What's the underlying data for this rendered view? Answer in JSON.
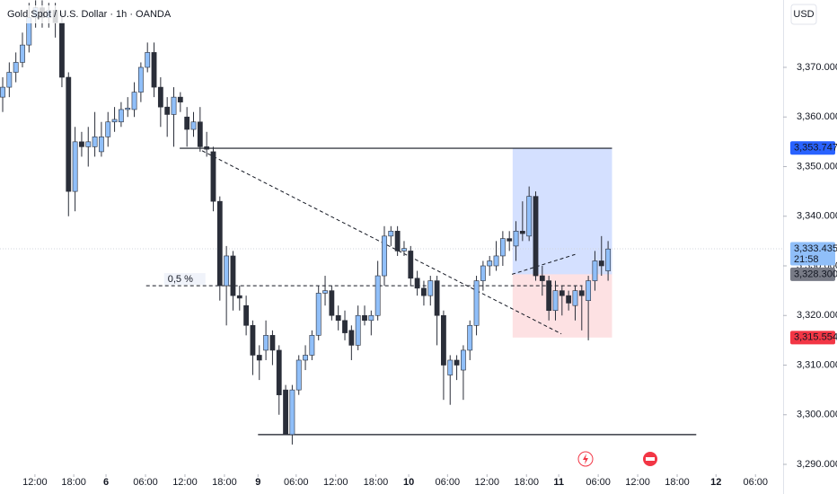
{
  "chart_data": {
    "type": "candlestick",
    "title": "Gold Spot / U.S. Dollar · 1h · OANDA",
    "currency": "USD",
    "up_color": "#90bff9",
    "down_color": "#2a2e39",
    "wick_color": "#2a2e39",
    "open": [
      3364,
      3366,
      3369,
      3371,
      3374.5,
      3380,
      3382,
      3380,
      3381.5,
      3379,
      3368,
      3345,
      3355,
      3354,
      3354,
      3353,
      3356,
      3359,
      3359,
      3361.5,
      3361.5,
      3365,
      3370,
      3373,
      3366,
      3362,
      3360.5,
      3364,
      3360,
      3357.5,
      3359,
      3354,
      3353,
      3343,
      3326,
      3332,
      3324,
      3322,
      3318,
      3312,
      3313,
      3316,
      3313,
      3305,
      3296,
      3305,
      3311,
      3312,
      3316,
      3324.5,
      3325,
      3320,
      3319,
      3317,
      3314,
      3320,
      3319,
      3320,
      3328,
      3336,
      3337,
      3333,
      3333,
      3327.5,
      3325.5,
      3324,
      3327,
      3320,
      3308,
      3311,
      3309,
      3313,
      3318,
      3327,
      3330,
      3330,
      3332,
      3335.5,
      3334,
      3337,
      3336,
      3344,
      3328,
      3327,
      3321,
      3325,
      3324,
      3322,
      3325,
      3323,
      3327,
      3331,
      3329
    ],
    "high": [
      3368,
      3371,
      3373,
      3377,
      3383,
      3383.5,
      3383.5,
      3383,
      3383,
      3381,
      3369,
      3358,
      3357,
      3358,
      3361,
      3359,
      3361,
      3362,
      3363,
      3364,
      3367,
      3371,
      3375,
      3375,
      3368,
      3364,
      3366,
      3365,
      3362,
      3361,
      3362,
      3357,
      3354,
      3344,
      3334,
      3333,
      3326,
      3324,
      3319,
      3314,
      3319,
      3317,
      3314,
      3306,
      3306,
      3312,
      3314,
      3317,
      3326,
      3328,
      3326,
      3322,
      3321,
      3318,
      3322,
      3322,
      3321,
      3331,
      3338,
      3338,
      3338,
      3335,
      3334,
      3329,
      3327,
      3328,
      3328,
      3321,
      3312,
      3312,
      3314,
      3319,
      3328,
      3331,
      3332,
      3335,
      3337,
      3337,
      3339,
      3343,
      3346,
      3345,
      3330,
      3328,
      3327,
      3326,
      3325,
      3326,
      3326,
      3328,
      3333,
      3336,
      3335
    ],
    "low": [
      3361,
      3364,
      3367,
      3370,
      3373,
      3378,
      3378,
      3378,
      3376,
      3366,
      3340,
      3341,
      3352,
      3350,
      3352,
      3352,
      3354,
      3357,
      3358,
      3360,
      3360,
      3363,
      3369,
      3364,
      3358,
      3356,
      3354,
      3361,
      3354,
      3356,
      3353,
      3352,
      3341,
      3323,
      3318,
      3321,
      3321,
      3316,
      3308,
      3307,
      3311,
      3310,
      3300,
      3296,
      3294,
      3304,
      3309,
      3311,
      3315,
      3322,
      3319,
      3317,
      3315,
      3311,
      3313,
      3318,
      3316,
      3319,
      3326,
      3334,
      3332,
      3332,
      3326,
      3324,
      3322,
      3322,
      3314,
      3303,
      3302,
      3307,
      3303,
      3311,
      3316,
      3325,
      3328,
      3329,
      3330,
      3333,
      3331,
      3335,
      3335,
      3327,
      3324,
      3319,
      3319,
      3320,
      3321,
      3319,
      3317,
      3315,
      3325,
      3328,
      3327
    ],
    "close": [
      3366,
      3369,
      3371,
      3374.5,
      3380,
      3382,
      3380,
      3381.5,
      3379,
      3368,
      3345,
      3355,
      3354,
      3355,
      3356,
      3356,
      3359,
      3359.5,
      3361.5,
      3361.8,
      3365,
      3370,
      3373,
      3366,
      3362,
      3360.5,
      3364,
      3363,
      3357.5,
      3359,
      3354,
      3353.5,
      3343,
      3326,
      3332,
      3324,
      3323.5,
      3318,
      3312,
      3311,
      3316,
      3313,
      3304,
      3296,
      3305,
      3311,
      3312,
      3316,
      3324.5,
      3325,
      3320,
      3319,
      3316.5,
      3314,
      3320,
      3319,
      3320,
      3328,
      3336,
      3337,
      3333,
      3333.5,
      3327.5,
      3325.5,
      3324,
      3327,
      3320,
      3310,
      3311,
      3310,
      3313,
      3318,
      3327,
      3330,
      3331,
      3332,
      3335.5,
      3335,
      3337,
      3336.5,
      3344,
      3328,
      3327,
      3321,
      3325,
      3324,
      3322.5,
      3325,
      3324,
      3327,
      3331,
      3330,
      3333.4
    ],
    "xlim": [
      -0.41,
      118.6
    ],
    "ylim": [
      3284.03,
      3383.57
    ],
    "xticks": [
      {
        "value": 4.9,
        "label": "12:00"
      },
      {
        "value": 10.8,
        "label": "18:00"
      },
      {
        "value": 15.7,
        "label": "6"
      },
      {
        "value": 21.7,
        "label": "06:00"
      },
      {
        "value": 27.7,
        "label": "12:00"
      },
      {
        "value": 33.7,
        "label": "18:00"
      },
      {
        "value": 38.8,
        "label": "9"
      },
      {
        "value": 44.6,
        "label": "06:00"
      },
      {
        "value": 50.6,
        "label": "12:00"
      },
      {
        "value": 56.7,
        "label": "18:00"
      },
      {
        "value": 61.7,
        "label": "10"
      },
      {
        "value": 67.6,
        "label": "06:00"
      },
      {
        "value": 73.6,
        "label": "12:00"
      },
      {
        "value": 79.6,
        "label": "18:00"
      },
      {
        "value": 84.5,
        "label": "11"
      },
      {
        "value": 90.5,
        "label": "06:00"
      },
      {
        "value": 96.5,
        "label": "12:00"
      },
      {
        "value": 102.5,
        "label": "18:00"
      },
      {
        "value": 108.4,
        "label": "12"
      },
      {
        "value": 114.4,
        "label": "06:00"
      }
    ],
    "yticks": [
      {
        "value": 3290,
        "label": "3,290.000"
      },
      {
        "value": 3300,
        "label": "3,300.000"
      },
      {
        "value": 3310,
        "label": "3,310.000"
      },
      {
        "value": 3320,
        "label": "3,320.000"
      },
      {
        "value": 3330,
        "label": "3,330.000"
      },
      {
        "value": 3340,
        "label": "3,340.000"
      },
      {
        "value": 3350,
        "label": "3,350.000"
      },
      {
        "value": 3360,
        "label": "3,360.000"
      },
      {
        "value": 3370,
        "label": "3,370.000"
      }
    ],
    "lines": [
      {
        "x": [
          26.9,
          92.6
        ],
        "y": [
          3353.7,
          3353.7
        ],
        "style": "solid"
      },
      {
        "x": [
          38.8,
          105.4
        ],
        "y": [
          3296,
          3296
        ],
        "style": "solid"
      },
      {
        "x": [
          30.3,
          84.9
        ],
        "y": [
          3353.2,
          3316.3
        ],
        "style": "dashed"
      },
      {
        "x": [
          77.4,
          87
        ],
        "y": [
          3328.3,
          3332.3
        ],
        "style": "dashed"
      },
      {
        "x": [
          21.8,
          88.1
        ],
        "y": [
          3326,
          3326
        ],
        "style": "dashed",
        "label": "0,5 %"
      }
    ],
    "position": {
      "x": [
        77.5,
        92.6
      ],
      "target": 3353.747,
      "entry": 3328.3,
      "stop": 3315.554
    },
    "price_labels": [
      {
        "value": 3353.747,
        "label": "3,353.747",
        "color": "#2962ff"
      },
      {
        "value": 3333.435,
        "label": "3,333.435",
        "color": "#90bff9",
        "countdown": "21:58"
      },
      {
        "value": 3328.3,
        "label": "3,328.300",
        "color": "#787b86"
      },
      {
        "value": 3315.554,
        "label": "3,315.554",
        "color": "#f23645"
      }
    ]
  }
}
